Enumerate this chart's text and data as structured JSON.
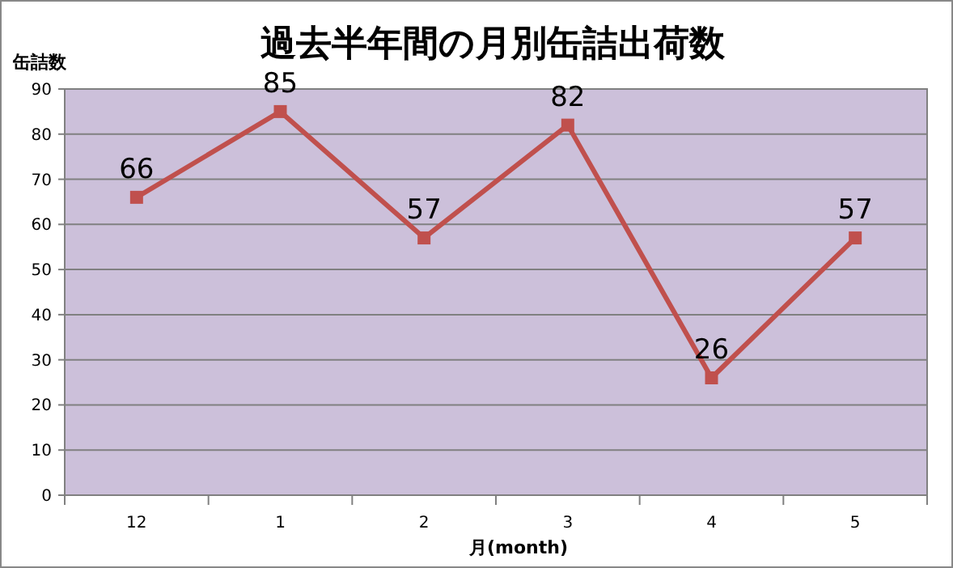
{
  "chart_data": {
    "type": "line",
    "title": "過去半年間の月別缶詰出荷数",
    "xlabel": "月(month)",
    "ylabel": "缶詰数",
    "categories": [
      "12",
      "1",
      "2",
      "3",
      "4",
      "5"
    ],
    "series": [
      {
        "color": "#c0504d",
        "values": [
          66,
          85,
          57,
          82,
          26,
          57
        ]
      }
    ],
    "ylim": [
      0,
      90
    ],
    "yticks": [
      0,
      10,
      20,
      30,
      40,
      50,
      60,
      70,
      80,
      90
    ],
    "grid": "y",
    "marker": "square",
    "data_labels": true
  }
}
